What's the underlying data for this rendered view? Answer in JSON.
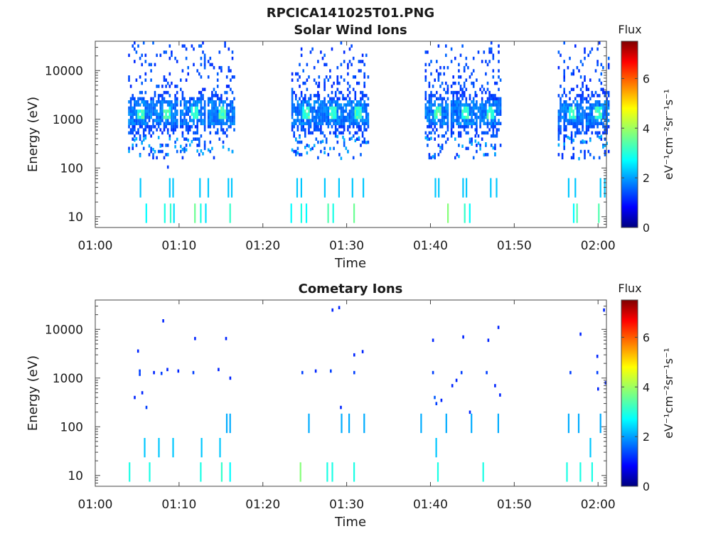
{
  "figure_title": "RPCICA141025T01.PNG",
  "chart_data": [
    {
      "type": "heatmap",
      "title": "Solar Wind Ions",
      "xlabel": "Time",
      "ylabel": "Energy (eV)",
      "x_ticks": [
        "01:00",
        "01:10",
        "01:20",
        "01:30",
        "01:40",
        "01:50",
        "02:00"
      ],
      "x_range_minutes": [
        0,
        61
      ],
      "y_scale": "log",
      "y_ticks": [
        "10",
        "100",
        "1000",
        "10000"
      ],
      "y_range": [
        6,
        40000
      ],
      "colorbar": {
        "title": "Flux",
        "unit": "eV⁻¹cm⁻²sr⁻¹s⁻¹",
        "ticks": [
          "0",
          "2",
          "4",
          "6"
        ],
        "range": [
          0,
          7.5
        ]
      },
      "bursts": [
        {
          "t": 5.1,
          "dur": 1.0
        },
        {
          "t": 8.2,
          "dur": 1.0
        },
        {
          "t": 11.5,
          "dur": 1.0
        },
        {
          "t": 14.8,
          "dur": 1.2
        },
        {
          "t": 24.8,
          "dur": 1.2
        },
        {
          "t": 28.0,
          "dur": 1.0
        },
        {
          "t": 31.0,
          "dur": 1.2
        },
        {
          "t": 40.5,
          "dur": 1.0
        },
        {
          "t": 43.8,
          "dur": 1.0
        },
        {
          "t": 46.8,
          "dur": 1.0
        },
        {
          "t": 56.6,
          "dur": 1.0
        },
        {
          "t": 59.7,
          "dur": 1.0
        }
      ],
      "gaps": [
        [
          0,
          3.8
        ],
        [
          16.8,
          23.2
        ],
        [
          32.6,
          39.2
        ],
        [
          48.4,
          54.5
        ]
      ],
      "low_energy_lines": [
        {
          "t": 6.0,
          "e": 12,
          "v": 2.8
        },
        {
          "t": 8.2,
          "e": 12,
          "v": 3.0
        },
        {
          "t": 8.9,
          "e": 12,
          "v": 3.2
        },
        {
          "t": 9.3,
          "e": 12,
          "v": 2.6
        },
        {
          "t": 11.8,
          "e": 12,
          "v": 3.6
        },
        {
          "t": 12.5,
          "e": 12,
          "v": 3.0
        },
        {
          "t": 13.1,
          "e": 12,
          "v": 2.6
        },
        {
          "t": 16.0,
          "e": 12,
          "v": 3.2
        },
        {
          "t": 23.3,
          "e": 12,
          "v": 2.8
        },
        {
          "t": 24.5,
          "e": 12,
          "v": 3.0
        },
        {
          "t": 25.1,
          "e": 12,
          "v": 2.8
        },
        {
          "t": 27.7,
          "e": 12,
          "v": 3.4
        },
        {
          "t": 28.3,
          "e": 12,
          "v": 3.0
        },
        {
          "t": 30.8,
          "e": 12,
          "v": 3.6
        },
        {
          "t": 42.0,
          "e": 12,
          "v": 3.8
        },
        {
          "t": 44.0,
          "e": 12,
          "v": 3.2
        },
        {
          "t": 44.6,
          "e": 12,
          "v": 2.8
        },
        {
          "t": 57.0,
          "e": 12,
          "v": 2.8
        },
        {
          "t": 57.4,
          "e": 12,
          "v": 3.4
        },
        {
          "t": 60.0,
          "e": 12,
          "v": 3.4
        },
        {
          "t": 5.3,
          "e": 40,
          "v": 2.4
        },
        {
          "t": 8.8,
          "e": 40,
          "v": 2.4
        },
        {
          "t": 9.2,
          "e": 40,
          "v": 2.4
        },
        {
          "t": 12.4,
          "e": 40,
          "v": 2.4
        },
        {
          "t": 13.4,
          "e": 40,
          "v": 2.4
        },
        {
          "t": 15.8,
          "e": 40,
          "v": 2.4
        },
        {
          "t": 16.2,
          "e": 40,
          "v": 2.4
        },
        {
          "t": 24.0,
          "e": 40,
          "v": 2.4
        },
        {
          "t": 24.5,
          "e": 40,
          "v": 2.4
        },
        {
          "t": 27.3,
          "e": 40,
          "v": 2.4
        },
        {
          "t": 29.0,
          "e": 40,
          "v": 2.4
        },
        {
          "t": 30.6,
          "e": 40,
          "v": 2.4
        },
        {
          "t": 31.9,
          "e": 40,
          "v": 2.4
        },
        {
          "t": 40.5,
          "e": 40,
          "v": 2.4
        },
        {
          "t": 40.9,
          "e": 40,
          "v": 2.4
        },
        {
          "t": 43.8,
          "e": 40,
          "v": 2.4
        },
        {
          "t": 44.2,
          "e": 40,
          "v": 2.4
        },
        {
          "t": 47.1,
          "e": 40,
          "v": 2.4
        },
        {
          "t": 47.8,
          "e": 40,
          "v": 2.4
        },
        {
          "t": 56.4,
          "e": 40,
          "v": 2.4
        },
        {
          "t": 57.2,
          "e": 40,
          "v": 2.4
        },
        {
          "t": 60.2,
          "e": 40,
          "v": 2.4
        },
        {
          "t": 60.7,
          "e": 40,
          "v": 2.4
        }
      ]
    },
    {
      "type": "heatmap",
      "title": "Cometary Ions",
      "xlabel": "Time",
      "ylabel": "Energy (eV)",
      "x_ticks": [
        "01:00",
        "01:10",
        "01:20",
        "01:30",
        "01:40",
        "01:50",
        "02:00"
      ],
      "x_range_minutes": [
        0,
        61
      ],
      "y_scale": "log",
      "y_ticks": [
        "10",
        "100",
        "1000",
        "10000"
      ],
      "y_range": [
        6,
        40000
      ],
      "colorbar": {
        "title": "Flux",
        "unit": "eV⁻¹cm⁻²sr⁻¹s⁻¹",
        "ticks": [
          "0",
          "2",
          "4",
          "6"
        ],
        "range": [
          0,
          7.5
        ]
      },
      "points": [
        {
          "t": 5.2,
          "e": 1400,
          "v": 1.4
        },
        {
          "t": 5.2,
          "e": 1200,
          "v": 1.4
        },
        {
          "t": 5.0,
          "e": 3600,
          "v": 1.2
        },
        {
          "t": 5.5,
          "e": 500,
          "v": 1.2
        },
        {
          "t": 4.6,
          "e": 400,
          "v": 1.2
        },
        {
          "t": 6.0,
          "e": 250,
          "v": 1.4
        },
        {
          "t": 6.9,
          "e": 1300,
          "v": 1.2
        },
        {
          "t": 7.8,
          "e": 1250,
          "v": 1.4
        },
        {
          "t": 8.0,
          "e": 15000,
          "v": 1.2
        },
        {
          "t": 8.5,
          "e": 1500,
          "v": 1.2
        },
        {
          "t": 9.8,
          "e": 1400,
          "v": 1.2
        },
        {
          "t": 11.6,
          "e": 1300,
          "v": 1.4
        },
        {
          "t": 11.8,
          "e": 6500,
          "v": 1.2
        },
        {
          "t": 14.6,
          "e": 1500,
          "v": 1.2
        },
        {
          "t": 15.5,
          "e": 6500,
          "v": 1.2
        },
        {
          "t": 16.0,
          "e": 1000,
          "v": 1.2
        },
        {
          "t": 24.6,
          "e": 1300,
          "v": 1.4
        },
        {
          "t": 26.2,
          "e": 1400,
          "v": 1.2
        },
        {
          "t": 28.0,
          "e": 1400,
          "v": 1.4
        },
        {
          "t": 28.2,
          "e": 25000,
          "v": 1.2
        },
        {
          "t": 29.0,
          "e": 28000,
          "v": 1.2
        },
        {
          "t": 29.2,
          "e": 250,
          "v": 1.2
        },
        {
          "t": 30.8,
          "e": 1300,
          "v": 1.4
        },
        {
          "t": 30.8,
          "e": 3000,
          "v": 1.2
        },
        {
          "t": 31.8,
          "e": 3500,
          "v": 1.2
        },
        {
          "t": 40.2,
          "e": 6000,
          "v": 1.2
        },
        {
          "t": 40.2,
          "e": 1300,
          "v": 1.4
        },
        {
          "t": 40.4,
          "e": 400,
          "v": 1.6
        },
        {
          "t": 40.6,
          "e": 300,
          "v": 1.4
        },
        {
          "t": 41.2,
          "e": 350,
          "v": 1.2
        },
        {
          "t": 42.5,
          "e": 700,
          "v": 1.2
        },
        {
          "t": 43.0,
          "e": 900,
          "v": 1.2
        },
        {
          "t": 43.6,
          "e": 1300,
          "v": 1.4
        },
        {
          "t": 43.8,
          "e": 7000,
          "v": 1.2
        },
        {
          "t": 44.6,
          "e": 200,
          "v": 1.2
        },
        {
          "t": 46.6,
          "e": 1300,
          "v": 1.4
        },
        {
          "t": 46.8,
          "e": 6000,
          "v": 1.2
        },
        {
          "t": 47.6,
          "e": 700,
          "v": 1.2
        },
        {
          "t": 48.0,
          "e": 11000,
          "v": 1.2
        },
        {
          "t": 48.2,
          "e": 450,
          "v": 1.2
        },
        {
          "t": 56.6,
          "e": 1300,
          "v": 1.4
        },
        {
          "t": 57.8,
          "e": 8000,
          "v": 1.2
        },
        {
          "t": 59.8,
          "e": 1300,
          "v": 1.4
        },
        {
          "t": 59.8,
          "e": 2800,
          "v": 1.2
        },
        {
          "t": 59.9,
          "e": 600,
          "v": 1.2
        },
        {
          "t": 60.6,
          "e": 25000,
          "v": 1.2
        },
        {
          "t": 60.8,
          "e": 800,
          "v": 1.2
        }
      ],
      "low_energy_lines": [
        {
          "t": 4.0,
          "e": 12,
          "v": 3.0
        },
        {
          "t": 6.4,
          "e": 12,
          "v": 3.0
        },
        {
          "t": 12.5,
          "e": 12,
          "v": 3.0
        },
        {
          "t": 15.0,
          "e": 12,
          "v": 3.2
        },
        {
          "t": 16.0,
          "e": 12,
          "v": 2.8
        },
        {
          "t": 24.4,
          "e": 12,
          "v": 3.8
        },
        {
          "t": 27.6,
          "e": 12,
          "v": 3.0
        },
        {
          "t": 28.2,
          "e": 12,
          "v": 3.0
        },
        {
          "t": 30.8,
          "e": 12,
          "v": 3.0
        },
        {
          "t": 40.8,
          "e": 12,
          "v": 3.0
        },
        {
          "t": 46.2,
          "e": 12,
          "v": 3.0
        },
        {
          "t": 56.2,
          "e": 12,
          "v": 3.0
        },
        {
          "t": 57.8,
          "e": 12,
          "v": 3.0
        },
        {
          "t": 59.2,
          "e": 12,
          "v": 3.0
        },
        {
          "t": 5.8,
          "e": 38,
          "v": 2.4
        },
        {
          "t": 7.5,
          "e": 38,
          "v": 2.4
        },
        {
          "t": 9.2,
          "e": 38,
          "v": 2.4
        },
        {
          "t": 12.6,
          "e": 38,
          "v": 2.4
        },
        {
          "t": 14.8,
          "e": 38,
          "v": 2.4
        },
        {
          "t": 40.6,
          "e": 38,
          "v": 2.4
        },
        {
          "t": 59.0,
          "e": 38,
          "v": 2.4
        },
        {
          "t": 15.6,
          "e": 120,
          "v": 2.2
        },
        {
          "t": 16.0,
          "e": 120,
          "v": 2.2
        },
        {
          "t": 25.4,
          "e": 120,
          "v": 2.2
        },
        {
          "t": 29.3,
          "e": 120,
          "v": 2.2
        },
        {
          "t": 30.2,
          "e": 120,
          "v": 2.2
        },
        {
          "t": 32.0,
          "e": 120,
          "v": 2.2
        },
        {
          "t": 38.8,
          "e": 120,
          "v": 2.2
        },
        {
          "t": 41.8,
          "e": 120,
          "v": 2.2
        },
        {
          "t": 44.8,
          "e": 120,
          "v": 2.2
        },
        {
          "t": 48.0,
          "e": 120,
          "v": 2.2
        },
        {
          "t": 56.4,
          "e": 120,
          "v": 2.2
        },
        {
          "t": 57.6,
          "e": 120,
          "v": 2.2
        },
        {
          "t": 60.2,
          "e": 120,
          "v": 2.2
        }
      ]
    }
  ]
}
